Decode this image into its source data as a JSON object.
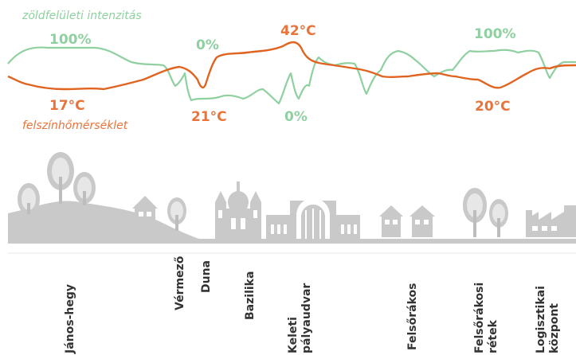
{
  "legend": {
    "green": "zöldfelületi intenzitás",
    "orange": "felszínhőmérséklet"
  },
  "green_labels": [
    "100%",
    "0%",
    "0%",
    "100%"
  ],
  "orange_labels": [
    "17°C",
    "42°C",
    "21°C",
    "20°C"
  ],
  "places": [
    "János-hegy",
    "Vérmező",
    "Duna",
    "Bazilika",
    "Keleti pályaudvar",
    "Felsőrákos",
    "Felsőrákosi rétek",
    "Logisztikai központ"
  ],
  "colors": {
    "green": "#8fd0a0",
    "orange": "#e06420",
    "silhouette": "#c9c9c9"
  },
  "icons": [
    "tree-icon",
    "house-icon",
    "church-icon",
    "railway-station-icon",
    "factory-icon"
  ]
}
